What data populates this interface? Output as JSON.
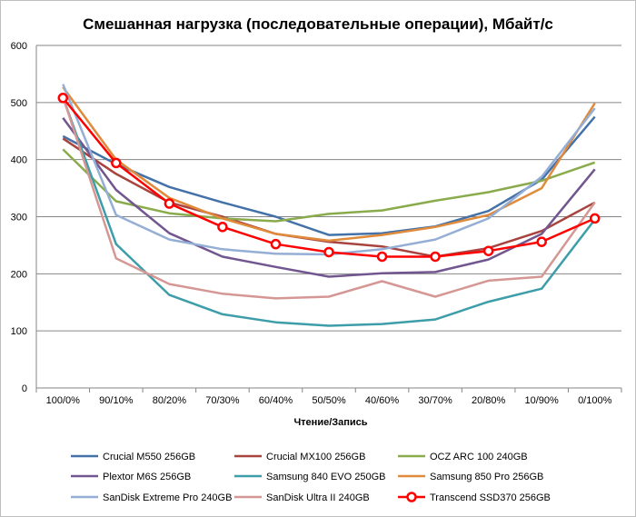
{
  "chart_data": {
    "type": "line",
    "title": "Смешанная нагрузка (последовательные операции), Мбайт/с",
    "xlabel": "Чтение/Запись",
    "ylabel": "",
    "ylim": [
      0,
      600
    ],
    "yticks": [
      0,
      100,
      200,
      300,
      400,
      500,
      600
    ],
    "grid": true,
    "legend_position": "bottom",
    "categories": [
      "100/0%",
      "90/10%",
      "80/20%",
      "70/30%",
      "60/40%",
      "50/50%",
      "40/60%",
      "30/70%",
      "20/80%",
      "10/90%",
      "0/100%"
    ],
    "series": [
      {
        "name": "Crucial M550 256GB",
        "color": "#4472a8",
        "marker": false,
        "values": [
          441,
          392,
          352,
          325,
          300,
          268,
          271,
          283,
          310,
          365,
          475
        ]
      },
      {
        "name": "Crucial MX100 256GB",
        "color": "#a8443f",
        "marker": false,
        "values": [
          437,
          375,
          325,
          300,
          270,
          256,
          248,
          230,
          245,
          275,
          325
        ]
      },
      {
        "name": "OCZ ARC 100 240GB",
        "color": "#8aab4c",
        "marker": false,
        "values": [
          418,
          327,
          306,
          297,
          292,
          305,
          311,
          328,
          343,
          363,
          395
        ]
      },
      {
        "name": "Plextor M6S 256GB",
        "color": "#71568f",
        "marker": false,
        "values": [
          473,
          347,
          271,
          230,
          212,
          195,
          201,
          203,
          225,
          270,
          383
        ]
      },
      {
        "name": "Samsung 840 EVO 250GB",
        "color": "#3d9da8",
        "marker": false,
        "values": [
          509,
          252,
          163,
          129,
          115,
          109,
          112,
          120,
          151,
          174,
          295
        ]
      },
      {
        "name": "Samsung 850 Pro 256GB",
        "color": "#e08a3b",
        "marker": false,
        "values": [
          527,
          400,
          333,
          297,
          270,
          258,
          268,
          282,
          303,
          350,
          499
        ]
      },
      {
        "name": "SanDisk Extreme Pro 240GB",
        "color": "#94aed6",
        "marker": false,
        "values": [
          532,
          303,
          260,
          243,
          235,
          234,
          243,
          260,
          297,
          370,
          490
        ]
      },
      {
        "name": "SanDisk Ultra II 240GB",
        "color": "#d59794",
        "marker": false,
        "values": [
          510,
          227,
          182,
          165,
          157,
          160,
          187,
          160,
          188,
          195,
          325
        ]
      },
      {
        "name": "Transcend SSD370 256GB",
        "color": "#ff0000",
        "marker": true,
        "values": [
          508,
          394,
          323,
          282,
          252,
          238,
          230,
          230,
          240,
          256,
          297
        ]
      }
    ]
  }
}
